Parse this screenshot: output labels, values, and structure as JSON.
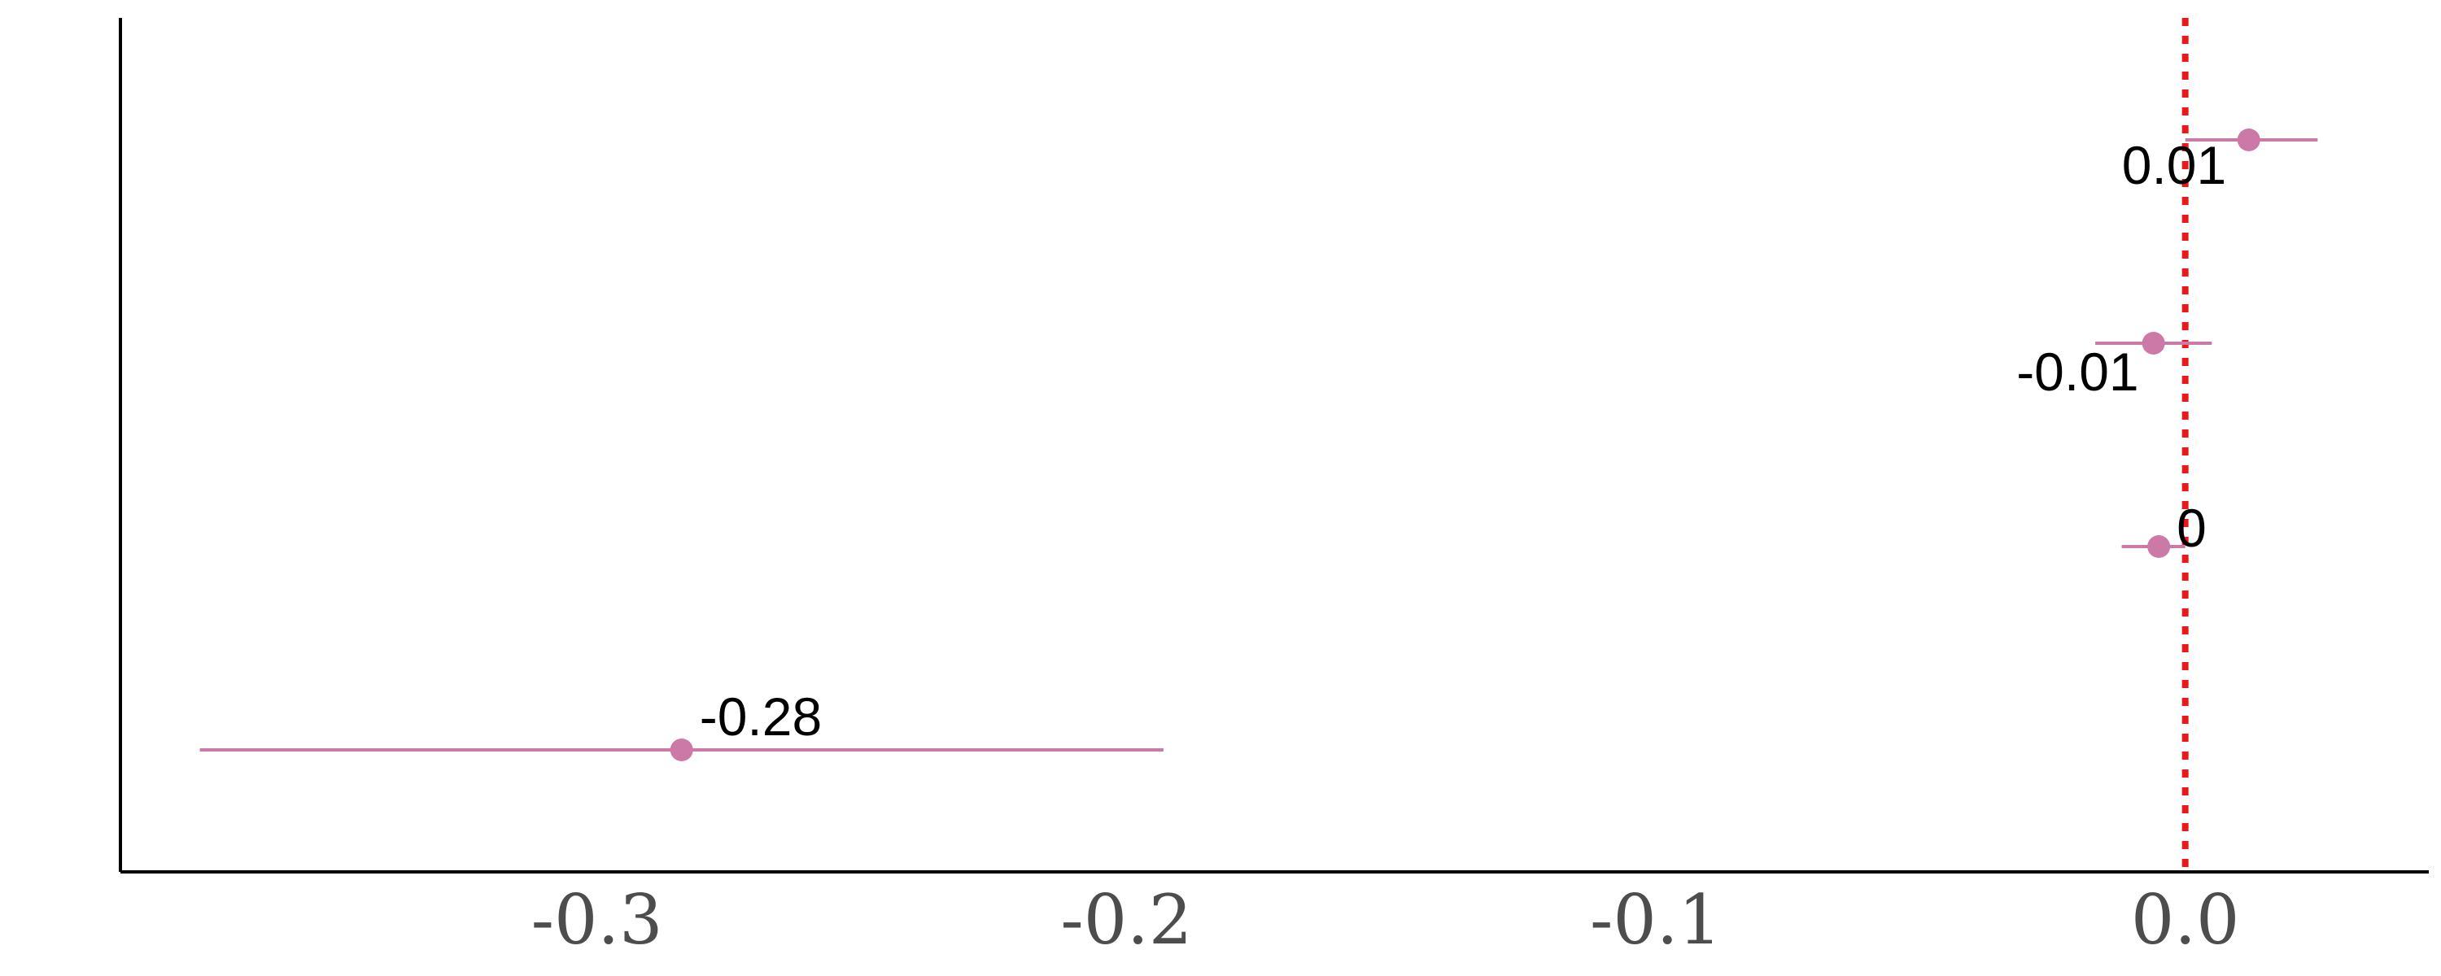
{
  "chart_data": {
    "type": "scatter",
    "subtype": "coefficient-plot",
    "title": "",
    "xlabel": "",
    "ylabel": "",
    "xlim": [
      -0.39,
      0.046
    ],
    "ylim": [
      0.4,
      4.6
    ],
    "x_ticks": [
      -0.3,
      -0.2,
      -0.1,
      0.0
    ],
    "x_tick_labels": [
      "-0.3",
      "-0.2",
      "-0.1",
      "0.0"
    ],
    "y_ticks": [],
    "grid": false,
    "legend": "none",
    "reference_line": {
      "x": 0,
      "style": "dotted",
      "color": "#e8191b"
    },
    "points": [
      {
        "y": 4,
        "estimate": 0.012,
        "ci_low": 0.0,
        "ci_high": 0.025,
        "label": "0.01"
      },
      {
        "y": 3,
        "estimate": -0.006,
        "ci_low": -0.017,
        "ci_high": 0.005,
        "label": "-0.01"
      },
      {
        "y": 2,
        "estimate": -0.005,
        "ci_low": -0.012,
        "ci_high": 0.0,
        "label": "0"
      },
      {
        "y": 1,
        "estimate": -0.284,
        "ci_low": -0.375,
        "ci_high": -0.193,
        "label": "-0.28"
      }
    ],
    "colors": {
      "points": "#cc79a7",
      "axis": "#000000",
      "tick_text": "#4d4d4d",
      "label_text": "#000000"
    }
  }
}
